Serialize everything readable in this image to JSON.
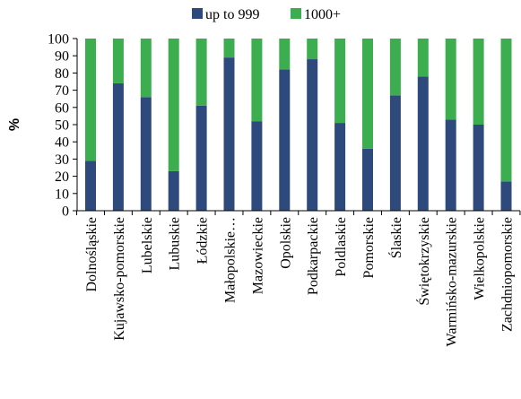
{
  "chart_data": {
    "type": "bar",
    "stacked": true,
    "title": "",
    "xlabel": "",
    "ylabel": "%",
    "ylim": [
      0,
      100
    ],
    "yticks": [
      0,
      10,
      20,
      30,
      40,
      50,
      60,
      70,
      80,
      90,
      100
    ],
    "grid": false,
    "legend_position": "top",
    "categories": [
      "Dolnośląskie",
      "Kujawsko-pomorskie",
      "Lubelskie",
      "Lubuskie",
      "Łódzkie",
      "Małopolskie…",
      "Mazowieckie",
      "Opolskie",
      "Podkarpackie",
      "Poldlaskie",
      "Pomorskie",
      "Ślaskie",
      "Świętokrzyskie",
      "Warmińsko-mazurskie",
      "Wielkopolskie",
      "Zachdniopomorskie"
    ],
    "series": [
      {
        "name": "up to 999",
        "color": "#2e4a7d",
        "values": [
          29,
          74,
          66,
          23,
          61,
          89,
          52,
          82,
          88,
          51,
          36,
          67,
          78,
          53,
          50,
          17
        ]
      },
      {
        "name": "1000+",
        "color": "#3cae4f",
        "values": [
          71,
          26,
          34,
          77,
          39,
          11,
          48,
          18,
          12,
          49,
          64,
          33,
          22,
          47,
          50,
          83
        ]
      }
    ]
  }
}
